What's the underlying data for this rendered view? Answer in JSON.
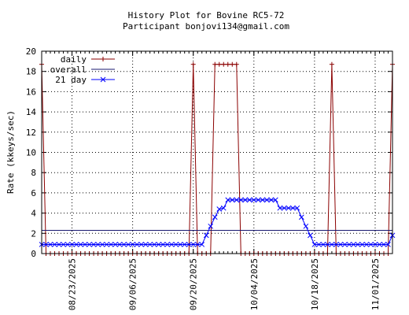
{
  "chart_data": {
    "type": "line",
    "title": "History Plot for Bovine RC5-72",
    "subtitle": "Participant bonjovi134@gmail.com",
    "ylabel": "Rate (kkeys/sec)",
    "xlabel": "",
    "ylim": [
      0,
      20
    ],
    "y_ticks": [
      "0",
      "2",
      "4",
      "6",
      "8",
      "10",
      "12",
      "14",
      "16",
      "18",
      "20"
    ],
    "x_start": "08/16/2025",
    "x_end": "11/05/2025",
    "x_tick_dates": [
      "08/23/2025",
      "09/06/2025",
      "09/20/2025",
      "10/04/2025",
      "10/18/2025",
      "11/01/2025"
    ],
    "x_minor_interval_days": 1,
    "grid": true,
    "legend_position": "top-left",
    "colors": {
      "daily": "#8b0000",
      "overall": "#191970",
      "avg21": "#0000ff"
    },
    "series": [
      {
        "name": "daily",
        "marker": "plus",
        "x": [
          "08/16/2025",
          "08/17/2025",
          "08/18/2025",
          "08/19/2025",
          "08/20/2025",
          "08/21/2025",
          "08/22/2025",
          "08/23/2025",
          "08/24/2025",
          "08/25/2025",
          "08/26/2025",
          "08/27/2025",
          "08/28/2025",
          "08/29/2025",
          "08/30/2025",
          "08/31/2025",
          "09/01/2025",
          "09/02/2025",
          "09/03/2025",
          "09/04/2025",
          "09/05/2025",
          "09/06/2025",
          "09/07/2025",
          "09/08/2025",
          "09/09/2025",
          "09/10/2025",
          "09/11/2025",
          "09/12/2025",
          "09/13/2025",
          "09/14/2025",
          "09/15/2025",
          "09/16/2025",
          "09/17/2025",
          "09/18/2025",
          "09/19/2025",
          "09/20/2025",
          "09/21/2025",
          "09/22/2025",
          "09/23/2025",
          "09/24/2025",
          "09/25/2025",
          "09/26/2025",
          "09/27/2025",
          "09/28/2025",
          "09/29/2025",
          "09/30/2025",
          "10/01/2025",
          "10/02/2025",
          "10/03/2025",
          "10/04/2025",
          "10/05/2025",
          "10/06/2025",
          "10/07/2025",
          "10/08/2025",
          "10/09/2025",
          "10/10/2025",
          "10/11/2025",
          "10/12/2025",
          "10/13/2025",
          "10/14/2025",
          "10/15/2025",
          "10/16/2025",
          "10/17/2025",
          "10/18/2025",
          "10/19/2025",
          "10/20/2025",
          "10/21/2025",
          "10/22/2025",
          "10/23/2025",
          "10/24/2025",
          "10/25/2025",
          "10/26/2025",
          "10/27/2025",
          "10/28/2025",
          "10/29/2025",
          "10/30/2025",
          "10/31/2025",
          "11/01/2025",
          "11/02/2025",
          "11/03/2025",
          "11/04/2025",
          "11/05/2025"
        ],
        "values": [
          18.7,
          0,
          0,
          0,
          0,
          0,
          0,
          0,
          0,
          0,
          0,
          0,
          0,
          0,
          0,
          0,
          0,
          0,
          0,
          0,
          0,
          0,
          0,
          0,
          0,
          0,
          0,
          0,
          0,
          0,
          0,
          0,
          0,
          0,
          0,
          18.7,
          0,
          0,
          0,
          0,
          18.7,
          18.7,
          18.7,
          18.7,
          18.7,
          18.7,
          0,
          0,
          0,
          0,
          0,
          0,
          0,
          0,
          0,
          0,
          0,
          0,
          0,
          0,
          0,
          0,
          0,
          0,
          0,
          0,
          0,
          18.7,
          0,
          0,
          0,
          0,
          0,
          0,
          0,
          0,
          0,
          0,
          0,
          0,
          0,
          18.7
        ]
      },
      {
        "name": "overall",
        "marker": "none",
        "x": [
          "08/16/2025",
          "11/05/2025"
        ],
        "values": [
          2.3,
          2.3
        ]
      },
      {
        "name": "21 day",
        "marker": "x",
        "x": [
          "08/16/2025",
          "08/17/2025",
          "08/18/2025",
          "08/19/2025",
          "08/20/2025",
          "08/21/2025",
          "08/22/2025",
          "08/23/2025",
          "08/24/2025",
          "08/25/2025",
          "08/26/2025",
          "08/27/2025",
          "08/28/2025",
          "08/29/2025",
          "08/30/2025",
          "08/31/2025",
          "09/01/2025",
          "09/02/2025",
          "09/03/2025",
          "09/04/2025",
          "09/05/2025",
          "09/06/2025",
          "09/07/2025",
          "09/08/2025",
          "09/09/2025",
          "09/10/2025",
          "09/11/2025",
          "09/12/2025",
          "09/13/2025",
          "09/14/2025",
          "09/15/2025",
          "09/16/2025",
          "09/17/2025",
          "09/18/2025",
          "09/19/2025",
          "09/20/2025",
          "09/21/2025",
          "09/22/2025",
          "09/23/2025",
          "09/24/2025",
          "09/25/2025",
          "09/26/2025",
          "09/27/2025",
          "09/28/2025",
          "09/29/2025",
          "09/30/2025",
          "10/01/2025",
          "10/02/2025",
          "10/03/2025",
          "10/04/2025",
          "10/05/2025",
          "10/06/2025",
          "10/07/2025",
          "10/08/2025",
          "10/09/2025",
          "10/10/2025",
          "10/11/2025",
          "10/12/2025",
          "10/13/2025",
          "10/14/2025",
          "10/15/2025",
          "10/16/2025",
          "10/17/2025",
          "10/18/2025",
          "10/19/2025",
          "10/20/2025",
          "10/21/2025",
          "10/22/2025",
          "10/23/2025",
          "10/24/2025",
          "10/25/2025",
          "10/26/2025",
          "10/27/2025",
          "10/28/2025",
          "10/29/2025",
          "10/30/2025",
          "10/31/2025",
          "11/01/2025",
          "11/02/2025",
          "11/03/2025",
          "11/04/2025",
          "11/05/2025"
        ],
        "values": [
          0.9,
          0.9,
          0.9,
          0.9,
          0.9,
          0.9,
          0.9,
          0.9,
          0.9,
          0.9,
          0.9,
          0.9,
          0.9,
          0.9,
          0.9,
          0.9,
          0.9,
          0.9,
          0.9,
          0.9,
          0.9,
          0.9,
          0.9,
          0.9,
          0.9,
          0.9,
          0.9,
          0.9,
          0.9,
          0.9,
          0.9,
          0.9,
          0.9,
          0.9,
          0.9,
          0.9,
          0.9,
          0.9,
          1.8,
          2.7,
          3.6,
          4.4,
          4.5,
          5.3,
          5.3,
          5.3,
          5.3,
          5.3,
          5.3,
          5.3,
          5.3,
          5.3,
          5.3,
          5.3,
          5.3,
          4.5,
          4.5,
          4.5,
          4.5,
          4.5,
          3.6,
          2.7,
          1.8,
          0.9,
          0.9,
          0.9,
          0.9,
          0.9,
          0.9,
          0.9,
          0.9,
          0.9,
          0.9,
          0.9,
          0.9,
          0.9,
          0.9,
          0.9,
          0.9,
          0.9,
          0.9,
          1.8
        ]
      }
    ]
  }
}
